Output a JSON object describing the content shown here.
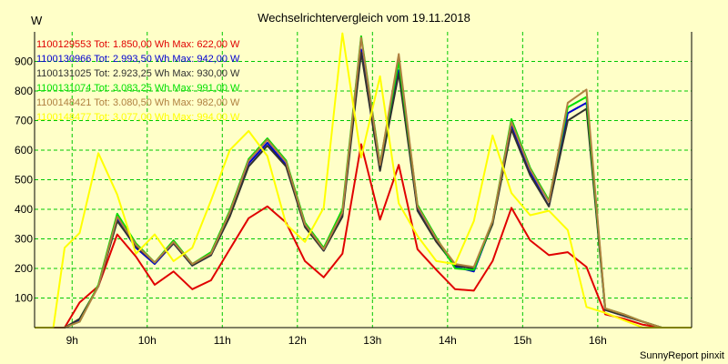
{
  "chart_data": {
    "type": "line",
    "title": "Wechselrichtervergleich vom 19.11.2018",
    "ylabel": "W",
    "xlabel": "",
    "ylim": [
      0,
      1000
    ],
    "y_ticks": [
      100,
      200,
      300,
      400,
      500,
      600,
      700,
      800,
      900
    ],
    "x_ticks": [
      {
        "label": "9h",
        "hour": 9
      },
      {
        "label": "10h",
        "hour": 10
      },
      {
        "label": "11h",
        "hour": 11
      },
      {
        "label": "12h",
        "hour": 12
      },
      {
        "label": "13h",
        "hour": 13
      },
      {
        "label": "14h",
        "hour": 14
      },
      {
        "label": "15h",
        "hour": 15
      },
      {
        "label": "16h",
        "hour": 16
      }
    ],
    "xlim": [
      8.5,
      17.25
    ],
    "grid": true,
    "legend_position": "top-left",
    "x": [
      8.5,
      8.75,
      8.9,
      9.1,
      9.35,
      9.6,
      9.85,
      10.1,
      10.35,
      10.6,
      10.85,
      11.1,
      11.35,
      11.6,
      11.85,
      12.1,
      12.35,
      12.6,
      12.85,
      13.1,
      13.35,
      13.6,
      13.85,
      14.1,
      14.35,
      14.6,
      14.85,
      15.1,
      15.35,
      15.6,
      15.85,
      16.1,
      16.35,
      16.6,
      16.85,
      17.25
    ],
    "series": [
      {
        "name": "1100129553",
        "legend": "1100129553 Tot: 1.850,00 Wh Max: 622,00 W",
        "color": "#e00000",
        "values": [
          0,
          0,
          0,
          85,
          140,
          315,
          240,
          145,
          190,
          130,
          160,
          265,
          370,
          410,
          355,
          225,
          170,
          250,
          620,
          365,
          550,
          265,
          195,
          130,
          125,
          225,
          405,
          295,
          245,
          255,
          205,
          45,
          30,
          10,
          0,
          0
        ]
      },
      {
        "name": "1100130966",
        "legend": "1100130966 Tot: 2.993,50 Wh Max: 942,00 W",
        "color": "#0000d0",
        "values": [
          0,
          0,
          0,
          25,
          140,
          365,
          270,
          215,
          285,
          210,
          245,
          385,
          555,
          625,
          550,
          345,
          260,
          385,
          940,
          535,
          870,
          400,
          295,
          205,
          190,
          355,
          685,
          525,
          410,
          725,
          760,
          60,
          40,
          20,
          0,
          0
        ]
      },
      {
        "name": "1100131025",
        "legend": "1100131025 Tot: 2.923,25 Wh Max: 930,00 W",
        "color": "#303030",
        "values": [
          0,
          0,
          0,
          30,
          140,
          360,
          275,
          220,
          285,
          210,
          245,
          375,
          545,
          615,
          545,
          340,
          260,
          375,
          930,
          530,
          860,
          395,
          290,
          210,
          200,
          350,
          670,
          515,
          410,
          700,
          740,
          60,
          40,
          20,
          0,
          0
        ]
      },
      {
        "name": "1100131074",
        "legend": "1100131074 Tot: 3.083,25 Wh Max: 991,00 W",
        "color": "#00e000",
        "values": [
          0,
          0,
          0,
          20,
          145,
          385,
          285,
          220,
          295,
          215,
          255,
          395,
          570,
          640,
          565,
          355,
          270,
          400,
          985,
          555,
          900,
          415,
          305,
          200,
          195,
          360,
          705,
          540,
          430,
          745,
          780,
          65,
          45,
          20,
          0,
          0
        ]
      },
      {
        "name": "1100148421",
        "legend": "1100148421 Tot: 3.080,50 Wh Max: 982,00 W",
        "color": "#b08040",
        "values": [
          0,
          0,
          0,
          20,
          140,
          375,
          280,
          220,
          290,
          215,
          250,
          390,
          565,
          635,
          560,
          350,
          265,
          390,
          980,
          550,
          925,
          410,
          300,
          215,
          205,
          360,
          695,
          535,
          425,
          760,
          805,
          65,
          45,
          20,
          0,
          0
        ]
      },
      {
        "name": "1100148477",
        "legend": "1100148477 Tot: 3.077,00 Wh Max: 994,00 W",
        "color": "#ffff00",
        "values": [
          0,
          0,
          270,
          320,
          590,
          450,
          250,
          315,
          225,
          270,
          430,
          600,
          665,
          580,
          350,
          290,
          405,
          995,
          575,
          850,
          420,
          310,
          225,
          215,
          360,
          650,
          455,
          380,
          395,
          330,
          70,
          50,
          25,
          0,
          0,
          0
        ]
      }
    ],
    "footer": "SunnyReport pinxit"
  }
}
